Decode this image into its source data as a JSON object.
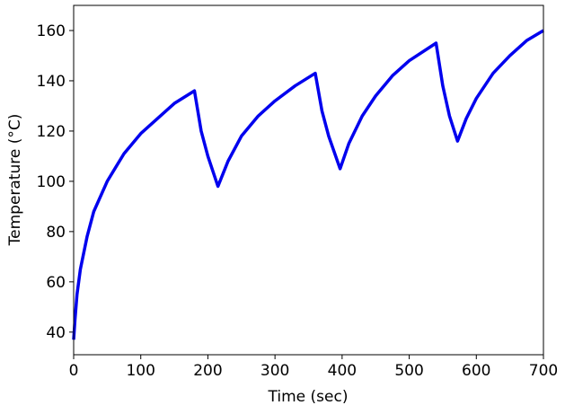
{
  "chart_data": {
    "type": "line",
    "xlabel": "Time (sec)",
    "ylabel": "Temperature (°C)",
    "x": [
      0,
      2,
      5,
      10,
      20,
      30,
      50,
      75,
      100,
      125,
      150,
      180,
      190,
      200,
      215,
      230,
      250,
      275,
      300,
      330,
      360,
      370,
      380,
      397,
      410,
      430,
      450,
      475,
      500,
      540,
      550,
      560,
      572,
      585,
      600,
      625,
      650,
      675,
      700
    ],
    "series": [
      {
        "name": "Temperature",
        "color": "#0000ee",
        "values": [
          37,
          45,
          55,
          65,
          78,
          88,
          100,
          111,
          119,
          125,
          131,
          136,
          120,
          110,
          98,
          108,
          118,
          126,
          132,
          138,
          143,
          128,
          118,
          105,
          115,
          126,
          134,
          142,
          148,
          155,
          138,
          126,
          116,
          125,
          133,
          143,
          150,
          156,
          160
        ]
      }
    ],
    "xlim": [
      0,
      700
    ],
    "xticks": [
      0,
      100,
      200,
      300,
      400,
      500,
      600,
      700
    ],
    "ylim": [
      31,
      170
    ],
    "yticks": [
      40,
      60,
      80,
      100,
      120,
      140,
      160
    ]
  }
}
